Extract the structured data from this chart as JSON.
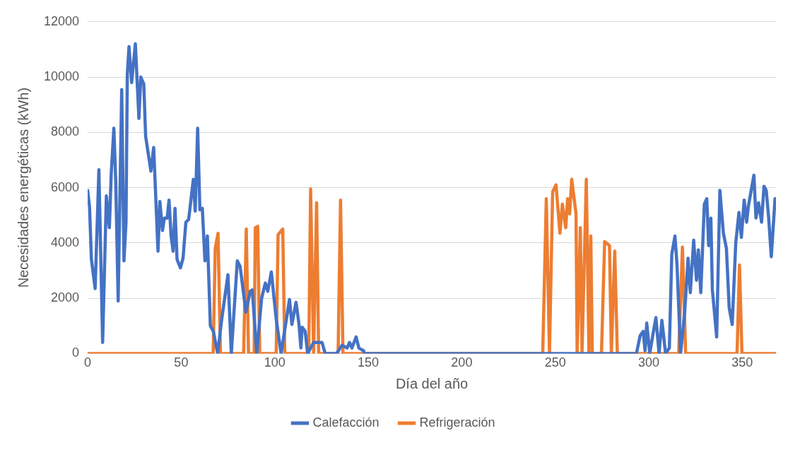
{
  "chart_data": {
    "type": "line",
    "xlabel": "Día del año",
    "ylabel": "Necesidades energéticas (kWh)",
    "xlim": [
      0,
      368
    ],
    "xticks": [
      0,
      50,
      100,
      150,
      200,
      250,
      300,
      350
    ],
    "ylim": [
      0,
      12000
    ],
    "yticks": [
      0,
      2000,
      4000,
      6000,
      8000,
      10000,
      12000
    ],
    "grid": "y",
    "legend": "bottom",
    "marker": "none",
    "line_style": "solid",
    "series": [
      {
        "name": "Calefacción",
        "color": "#4472c4",
        "x": [
          0,
          1,
          2,
          4,
          6,
          8,
          10,
          11.6,
          12.6,
          14,
          15,
          16.3,
          18.2,
          19.4,
          20.5,
          21.2,
          22.1,
          23.5,
          25.5,
          27.4,
          28.4,
          30,
          31,
          33.8,
          35.3,
          37.6,
          38.6,
          40,
          41,
          42.5,
          43.5,
          44.6,
          45.7,
          46.7,
          47.8,
          49.6,
          51,
          52.5,
          54,
          56.5,
          57.5,
          58.8,
          60,
          61.3,
          62.7,
          64,
          65.6,
          67.2,
          69.5,
          71.6,
          75,
          76.8,
          80,
          81.5,
          84.6,
          86.9,
          88,
          90.4,
          93,
          95,
          96.3,
          98.2,
          100.8,
          103.4,
          107.9,
          109.2,
          111.4,
          113,
          114,
          114.7,
          116.3,
          117.6,
          120.8,
          125.3,
          127,
          133,
          136,
          138.7,
          140,
          141.3,
          143.5,
          145,
          147.5,
          148,
          293.4,
          295.4,
          297,
          298,
          298.9,
          300.5,
          302.5,
          303.8,
          305.5,
          307,
          309,
          311,
          312.3,
          314,
          315.1,
          317,
          319.2,
          321,
          322.2,
          324,
          325.5,
          326.5,
          327.8,
          329.7,
          331,
          332,
          333.2,
          334,
          336.3,
          338,
          339.9,
          341.5,
          343,
          344.6,
          346.5,
          348.2,
          349.5,
          351,
          352.3,
          353.3,
          356.2,
          357.3,
          358.7,
          360.3,
          361.6,
          362.8,
          364.1,
          365.5,
          367.5
        ],
        "values": [
          5900,
          5300,
          3400,
          2350,
          6650,
          400,
          5700,
          4550,
          6500,
          8150,
          6250,
          1900,
          9550,
          3350,
          4750,
          10100,
          11100,
          9800,
          11200,
          8500,
          10000,
          9750,
          7850,
          6600,
          7450,
          3700,
          5500,
          4450,
          4900,
          4900,
          5550,
          4250,
          3700,
          5250,
          3400,
          3100,
          3450,
          4750,
          4850,
          6300,
          5150,
          8150,
          5200,
          5250,
          3350,
          4250,
          1000,
          800,
          0,
          1200,
          2850,
          0,
          3350,
          3150,
          1500,
          2250,
          2300,
          0,
          2000,
          2550,
          2250,
          2950,
          1250,
          0,
          1950,
          1050,
          1850,
          1050,
          200,
          950,
          800,
          0,
          400,
          400,
          0,
          0,
          300,
          200,
          400,
          200,
          600,
          200,
          100,
          0,
          0,
          650,
          800,
          100,
          1100,
          0,
          800,
          1300,
          0,
          1200,
          0,
          200,
          3600,
          4250,
          3200,
          0,
          1500,
          3450,
          2200,
          4100,
          2650,
          3750,
          2200,
          5400,
          5600,
          3900,
          4900,
          2300,
          600,
          5900,
          4350,
          3800,
          1650,
          1050,
          4000,
          5100,
          4200,
          5550,
          4750,
          5350,
          6450,
          4900,
          5450,
          4750,
          6050,
          5900,
          4900,
          3500,
          5600
        ]
      },
      {
        "name": "Refrigeración",
        "color": "#ed7d31",
        "x": [
          0,
          67.1,
          68.2,
          69.7,
          71,
          83.4,
          84.8,
          86,
          89,
          89.6,
          90.9,
          92,
          100.8,
          101.8,
          104.3,
          105.4,
          118.2,
          119.2,
          120.8,
          122.4,
          123.5,
          133.9,
          135.2,
          136.5,
          243.3,
          245.2,
          246.9,
          248.6,
          250.4,
          252.5,
          253.8,
          255.6,
          256.6,
          257.7,
          258.8,
          261.1,
          261.7,
          263.4,
          264.3,
          266.6,
          268,
          269,
          269.8,
          274.7,
          276.4,
          279,
          280,
          281.8,
          283.2,
          316,
          318,
          319.7,
          347.2,
          348.5,
          349.8,
          367.5
        ],
        "values": [
          0,
          0,
          3800,
          4350,
          0,
          0,
          4500,
          0,
          0,
          4550,
          4600,
          0,
          0,
          4300,
          4500,
          0,
          0,
          5950,
          0,
          5450,
          0,
          0,
          5550,
          0,
          0,
          5600,
          0,
          5850,
          6100,
          4350,
          5400,
          4550,
          5600,
          5050,
          6300,
          5050,
          0,
          4550,
          0,
          6300,
          0,
          4250,
          0,
          0,
          4050,
          3900,
          0,
          3700,
          0,
          0,
          3850,
          0,
          0,
          3200,
          0,
          0
        ]
      }
    ]
  }
}
